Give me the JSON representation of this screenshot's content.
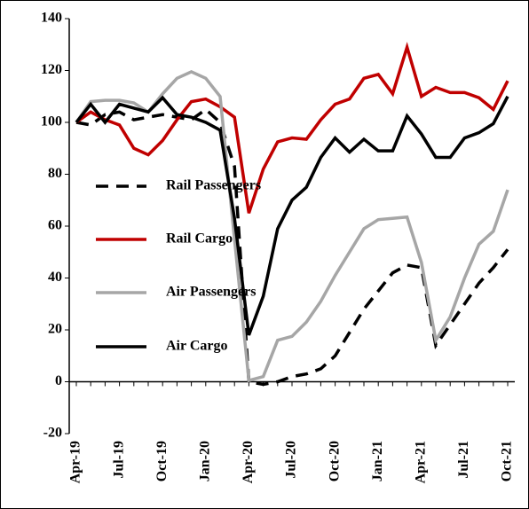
{
  "chart_data": {
    "type": "line",
    "categories": [
      "Apr-19",
      null,
      null,
      "Jul-19",
      null,
      null,
      "Oct-19",
      null,
      null,
      "Jan-20",
      null,
      null,
      "Apr-20",
      null,
      null,
      "Jul-20",
      null,
      null,
      "Oct-20",
      null,
      null,
      "Jan-21",
      null,
      null,
      "Apr-21",
      null,
      null,
      "Jul-21",
      null,
      null,
      "Oct-21"
    ],
    "series": [
      {
        "name": "Rail Passengers",
        "color": "#000000",
        "dashed": true,
        "values": [
          100,
          99,
          103,
          104,
          101,
          102,
          103,
          102,
          101,
          105,
          100,
          83,
          0,
          -1,
          0,
          2,
          3,
          5,
          10,
          19,
          28,
          35,
          42,
          45,
          44,
          14,
          22,
          30,
          38,
          44,
          51
        ]
      },
      {
        "name": "Rail Cargo",
        "color": "#c00000",
        "dashed": false,
        "values": [
          100,
          104,
          101,
          99,
          90,
          87.5,
          93,
          101,
          108,
          109,
          106,
          102,
          65,
          82,
          92.5,
          94,
          93.5,
          101,
          107,
          109,
          117,
          118.5,
          111,
          129,
          110,
          113.5,
          111.5,
          111.5,
          109.5,
          105,
          116
        ]
      },
      {
        "name": "Air Passengers",
        "color": "#a6a6a6",
        "dashed": false,
        "values": [
          100,
          108,
          108.5,
          108.5,
          107.5,
          104,
          111,
          117,
          119.5,
          117,
          110,
          55,
          0.5,
          2,
          16,
          17.5,
          23,
          31,
          41,
          50,
          59,
          62.5,
          63,
          63.5,
          46,
          16,
          25,
          40,
          53,
          58,
          74
        ]
      },
      {
        "name": "Air Cargo",
        "color": "#000000",
        "dashed": false,
        "values": [
          100,
          107,
          100,
          107,
          105.5,
          104,
          109.5,
          103,
          102,
          100,
          97,
          63,
          18,
          33,
          59,
          70,
          75,
          86.5,
          94,
          88.5,
          93.5,
          89,
          89,
          102.5,
          95.5,
          86.5,
          86.5,
          94,
          96,
          99.5,
          110
        ]
      }
    ],
    "ylim": [
      -20,
      140
    ],
    "yticks": [
      -20,
      0,
      20,
      40,
      60,
      80,
      100,
      120,
      140
    ],
    "grid": false
  }
}
